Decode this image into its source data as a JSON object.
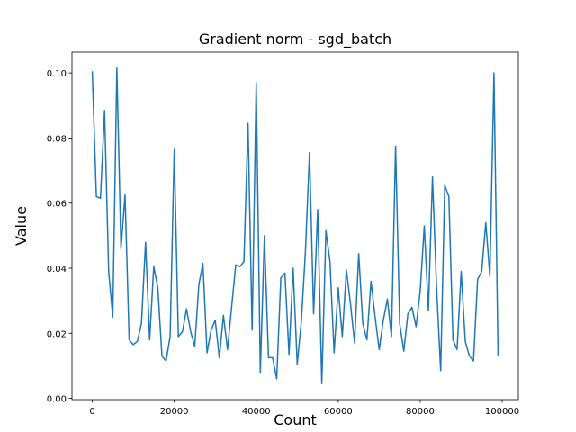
{
  "chart_data": {
    "type": "line",
    "title": "Gradient norm - sgd_batch",
    "x_label": "Count",
    "y_label": "Value",
    "x": [
      0,
      1000,
      2000,
      3000,
      4000,
      5000,
      6000,
      7000,
      8000,
      9000,
      10000,
      11000,
      12000,
      13000,
      14000,
      15000,
      16000,
      17000,
      18000,
      19000,
      20000,
      21000,
      22000,
      23000,
      24000,
      25000,
      26000,
      27000,
      28000,
      29000,
      30000,
      31000,
      32000,
      33000,
      34000,
      35000,
      36000,
      37000,
      38000,
      39000,
      40000,
      41000,
      42000,
      43000,
      44000,
      45000,
      46000,
      47000,
      48000,
      49000,
      50000,
      51000,
      52000,
      53000,
      54000,
      55000,
      56000,
      57000,
      58000,
      59000,
      60000,
      61000,
      62000,
      63000,
      64000,
      65000,
      66000,
      67000,
      68000,
      69000,
      70000,
      71000,
      72000,
      73000,
      74000,
      75000,
      76000,
      77000,
      78000,
      79000,
      80000,
      81000,
      82000,
      83000,
      84000,
      85000,
      86000,
      87000,
      88000,
      89000,
      90000,
      91000,
      92000,
      93000,
      94000,
      95000,
      96000,
      97000,
      98000,
      99000
    ],
    "values": [
      0.1005,
      0.062,
      0.0615,
      0.0885,
      0.039,
      0.025,
      0.1015,
      0.046,
      0.0625,
      0.018,
      0.0165,
      0.0175,
      0.023,
      0.048,
      0.018,
      0.0405,
      0.034,
      0.013,
      0.0115,
      0.019,
      0.0765,
      0.019,
      0.0205,
      0.0275,
      0.0205,
      0.016,
      0.035,
      0.0415,
      0.014,
      0.021,
      0.024,
      0.0125,
      0.0255,
      0.015,
      0.028,
      0.041,
      0.0405,
      0.042,
      0.0845,
      0.021,
      0.097,
      0.008,
      0.05,
      0.0125,
      0.0125,
      0.006,
      0.037,
      0.0385,
      0.0135,
      0.04,
      0.0105,
      0.0235,
      0.045,
      0.0755,
      0.026,
      0.058,
      0.0045,
      0.0515,
      0.042,
      0.014,
      0.034,
      0.019,
      0.0395,
      0.029,
      0.017,
      0.0445,
      0.023,
      0.018,
      0.036,
      0.025,
      0.015,
      0.024,
      0.0305,
      0.019,
      0.0775,
      0.023,
      0.0145,
      0.026,
      0.028,
      0.022,
      0.033,
      0.053,
      0.027,
      0.068,
      0.034,
      0.0085,
      0.0655,
      0.062,
      0.018,
      0.015,
      0.039,
      0.0175,
      0.013,
      0.0115,
      0.0365,
      0.039,
      0.054,
      0.0375,
      0.1,
      0.013
    ],
    "color": "#1f77b4",
    "xlim": [
      -4950,
      103950
    ],
    "ylim": [
      -0.0004,
      0.1064
    ],
    "xticks": [
      0,
      20000,
      40000,
      60000,
      80000,
      100000
    ],
    "yticks": [
      {
        "value": 0,
        "label": "0.00"
      },
      {
        "value": 0.02,
        "label": "0.02"
      },
      {
        "value": 0.04,
        "label": "0.04"
      },
      {
        "value": 0.06,
        "label": "0.06"
      },
      {
        "value": 0.08,
        "label": "0.08"
      },
      {
        "value": 0.1,
        "label": "0.10"
      }
    ]
  }
}
